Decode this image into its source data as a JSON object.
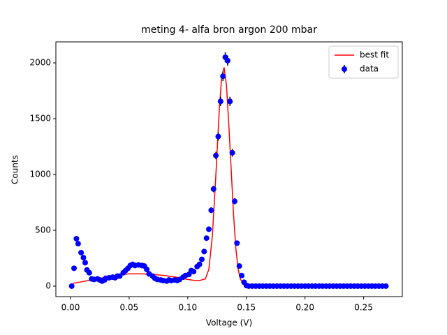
{
  "chart_data": {
    "type": "scatter",
    "title": "meting 4- alfa bron argon 200 mbar",
    "x_label": "Voltage (V)",
    "y_label": "Counts",
    "xlim": [
      -0.0125,
      0.283
    ],
    "ylim": [
      -94,
      2188
    ],
    "xticks": [
      {
        "value": 0,
        "label": "0.00"
      },
      0.05,
      {
        "value": 0.1,
        "label": "0.10"
      },
      0.15,
      {
        "value": 0.2,
        "label": "0.20"
      },
      0.25
    ],
    "yticks": [
      0,
      500,
      1000,
      1500,
      2000
    ],
    "legend": "upper right",
    "series": [
      {
        "name": "best fit",
        "type": "line",
        "color": "#ff0000",
        "x": [
          0.002,
          0.01,
          0.02,
          0.03,
          0.04,
          0.05,
          0.06,
          0.07,
          0.08,
          0.09,
          0.1,
          0.105,
          0.11,
          0.115,
          0.118,
          0.121,
          0.124,
          0.127,
          0.129,
          0.131,
          0.133,
          0.135,
          0.137,
          0.139,
          0.141,
          0.143,
          0.145,
          0.148,
          0.152,
          0.16,
          0.27
        ],
        "values": [
          25,
          40,
          60,
          80,
          100,
          110,
          110,
          105,
          95,
          80,
          60,
          52,
          50,
          65,
          150,
          450,
          1000,
          1600,
          1880,
          1960,
          1800,
          1450,
          1050,
          650,
          340,
          150,
          60,
          15,
          3,
          0,
          0
        ]
      },
      {
        "name": "data",
        "type": "errorbar",
        "color": "#0000ff",
        "x": [
          0.001,
          0.003,
          0.005,
          0.0065,
          0.009,
          0.011,
          0.0125,
          0.014,
          0.016,
          0.018,
          0.02,
          0.023,
          0.025,
          0.027,
          0.029,
          0.03,
          0.033,
          0.036,
          0.038,
          0.04,
          0.042,
          0.045,
          0.047,
          0.049,
          0.051,
          0.053,
          0.055,
          0.058,
          0.061,
          0.063,
          0.065,
          0.067,
          0.07,
          0.072,
          0.074,
          0.077,
          0.079,
          0.082,
          0.084,
          0.086,
          0.089,
          0.091,
          0.093,
          0.096,
          0.098,
          0.101,
          0.103,
          0.105,
          0.108,
          0.11,
          0.112,
          0.114,
          0.116,
          0.118,
          0.12,
          0.122,
          0.124,
          0.126,
          0.128,
          0.13,
          0.132,
          0.134,
          0.136,
          0.138,
          0.14,
          0.142,
          0.144,
          0.146,
          0.148,
          0.15,
          0.152,
          0.155,
          0.158,
          0.161,
          0.164,
          0.167,
          0.17,
          0.173,
          0.176,
          0.179,
          0.182,
          0.185,
          0.188,
          0.191,
          0.194,
          0.197,
          0.2,
          0.203,
          0.206,
          0.209,
          0.212,
          0.215,
          0.218,
          0.221,
          0.224,
          0.227,
          0.23,
          0.233,
          0.236,
          0.239,
          0.242,
          0.245,
          0.248,
          0.251,
          0.254,
          0.257,
          0.26,
          0.263,
          0.266,
          0.269
        ],
        "values": [
          0,
          160,
          425,
          380,
          300,
          255,
          210,
          145,
          120,
          65,
          60,
          65,
          55,
          45,
          55,
          70,
          75,
          80,
          75,
          90,
          90,
          120,
          140,
          160,
          185,
          195,
          185,
          190,
          185,
          180,
          150,
          110,
          90,
          70,
          60,
          55,
          50,
          45,
          55,
          50,
          55,
          50,
          60,
          80,
          95,
          105,
          140,
          130,
          175,
          195,
          240,
          310,
          430,
          510,
          680,
          870,
          1170,
          1340,
          1655,
          1880,
          2050,
          2020,
          1655,
          1195,
          760,
          385,
          180,
          95,
          35,
          5,
          0,
          0,
          0,
          0,
          0,
          0,
          0,
          0,
          0,
          0,
          0,
          0,
          0,
          0,
          0,
          0,
          0,
          0,
          0,
          0,
          0,
          0,
          0,
          0,
          0,
          0,
          0,
          0,
          0,
          0,
          0,
          0,
          0,
          0,
          0,
          0,
          0,
          0,
          0,
          0
        ],
        "errors": [
          0,
          13,
          21,
          19,
          17,
          16,
          14,
          12,
          11,
          8,
          8,
          8,
          7,
          7,
          7,
          8,
          9,
          9,
          9,
          9,
          9,
          11,
          12,
          13,
          14,
          14,
          14,
          14,
          14,
          13,
          12,
          10,
          9,
          8,
          8,
          7,
          7,
          7,
          7,
          7,
          7,
          7,
          8,
          9,
          10,
          10,
          12,
          11,
          13,
          14,
          15,
          18,
          21,
          23,
          26,
          29,
          34,
          37,
          41,
          43,
          45,
          45,
          41,
          35,
          28,
          20,
          13,
          10,
          6,
          2,
          0,
          0,
          0,
          0,
          0,
          0,
          0,
          0,
          0,
          0,
          0,
          0,
          0,
          0,
          0,
          0,
          0,
          0,
          0,
          0,
          0,
          0,
          0,
          0,
          0,
          0,
          0,
          0,
          0,
          0,
          0,
          0,
          0,
          0,
          0,
          0,
          0,
          0,
          0,
          0
        ]
      }
    ]
  }
}
